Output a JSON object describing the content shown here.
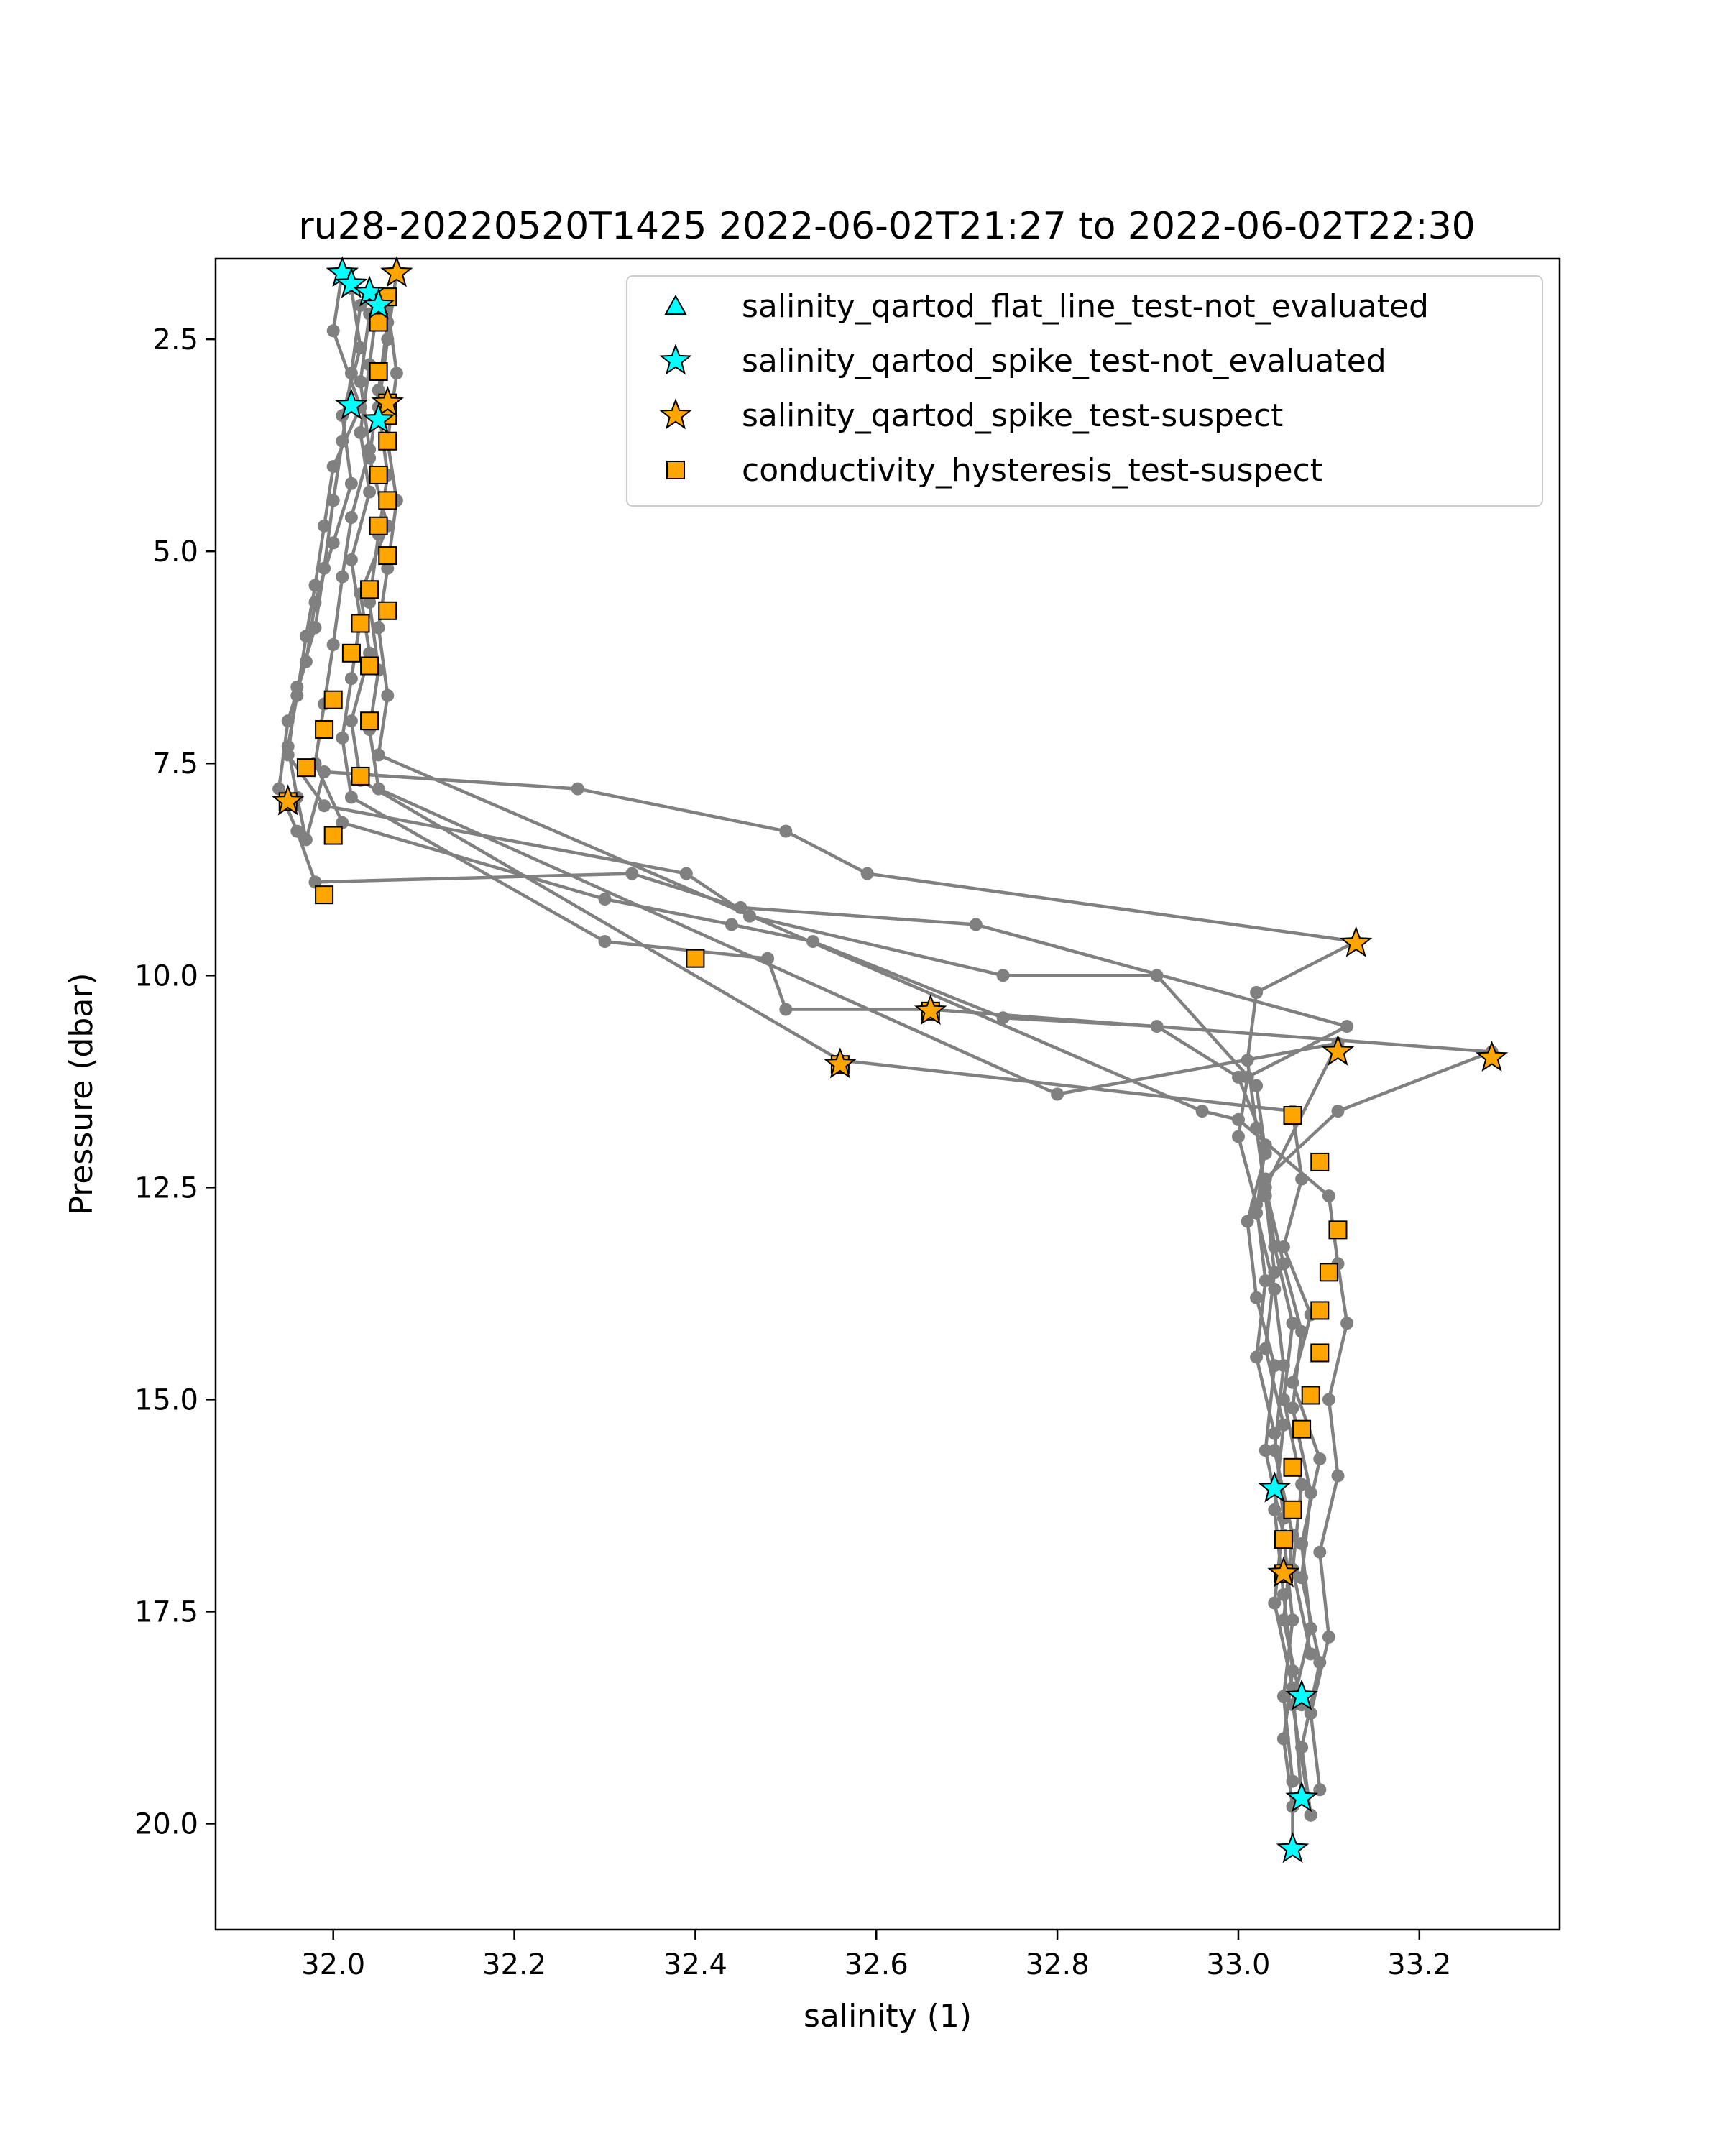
{
  "chart_data": {
    "type": "line",
    "title": "ru28-20220520T1425 2022-06-02T21:27 to 2022-06-02T22:30",
    "xlabel": "salinity (1)",
    "ylabel": "Pressure (dbar)",
    "xlim": [
      31.87,
      33.355
    ],
    "ylim": [
      21.25,
      1.55
    ],
    "y_inverted": true,
    "grid": false,
    "legend_position": "upper-right",
    "xticks": [
      32.0,
      32.2,
      32.4,
      32.6,
      32.8,
      33.0,
      33.2
    ],
    "xtick_labels": [
      "32.0",
      "32.2",
      "32.4",
      "32.6",
      "32.8",
      "33.0",
      "33.2"
    ],
    "yticks": [
      2.5,
      5.0,
      7.5,
      10.0,
      12.5,
      15.0,
      17.5,
      20.0
    ],
    "ytick_labels": [
      "2.5",
      "5.0",
      "7.5",
      "10.0",
      "12.5",
      "15.0",
      "17.5",
      "20.0"
    ],
    "colors": {
      "profile_line": "#808080",
      "not_evaluated": "#00ffff",
      "suspect": "#ffa500",
      "marker_edge": "#000000"
    },
    "profiles": [
      {
        "x": [
          32.01,
          32.0,
          32.03,
          32.0,
          31.99,
          31.98,
          31.97,
          31.96,
          31.95,
          31.96,
          31.97,
          31.99,
          32.27,
          32.5,
          32.59,
          33.13,
          33.02,
          33.01,
          33.02,
          33.03,
          33.04,
          33.03,
          33.05,
          33.04,
          33.05,
          33.06,
          33.05,
          33.06,
          33.06
        ],
        "y": [
          1.7,
          2.4,
          3.3,
          4.0,
          4.7,
          5.4,
          6.0,
          6.7,
          7.3,
          7.9,
          8.4,
          7.6,
          7.8,
          8.3,
          8.8,
          9.6,
          10.2,
          11.0,
          11.8,
          12.6,
          13.5,
          14.4,
          15.3,
          16.3,
          17.3,
          18.2,
          19.0,
          19.8,
          20.3
        ]
      },
      {
        "x": [
          32.02,
          32.03,
          32.01,
          32.02,
          32.0,
          31.98,
          31.97,
          31.95,
          31.94,
          31.96,
          31.98,
          32.33,
          32.45,
          32.71,
          33.12,
          33.01,
          33.0,
          33.02,
          33.03,
          33.02,
          33.04,
          33.05,
          33.04,
          33.06,
          33.07
        ],
        "y": [
          1.9,
          2.6,
          3.4,
          4.2,
          4.9,
          5.6,
          6.3,
          7.0,
          7.8,
          8.3,
          8.9,
          8.8,
          9.2,
          9.4,
          10.6,
          11.2,
          11.9,
          12.7,
          13.6,
          14.5,
          15.4,
          16.4,
          17.4,
          18.4,
          19.7
        ]
      },
      {
        "x": [
          32.03,
          32.02,
          32.01,
          32.0,
          31.99,
          31.98,
          31.96,
          31.95,
          31.99,
          32.39,
          32.46,
          32.74,
          32.91,
          33.02,
          33.03,
          33.01,
          33.02,
          33.04,
          33.03,
          33.05,
          33.06,
          33.05,
          33.06
        ],
        "y": [
          2.1,
          2.9,
          3.7,
          4.4,
          5.2,
          5.9,
          6.6,
          7.4,
          8.0,
          8.8,
          9.3,
          10.0,
          10.0,
          11.3,
          12.1,
          12.9,
          13.8,
          14.6,
          15.6,
          16.6,
          17.6,
          18.5,
          19.5
        ]
      },
      {
        "x": [
          32.04,
          32.03,
          32.04,
          32.02,
          32.01,
          32.0,
          31.99,
          31.98,
          32.01,
          32.3,
          32.44,
          32.53,
          32.74,
          32.91,
          33.0,
          33.03,
          33.02,
          33.04,
          33.05,
          33.04,
          33.06,
          33.05,
          33.07
        ],
        "y": [
          2.2,
          3.0,
          3.8,
          4.6,
          5.3,
          6.1,
          6.8,
          7.5,
          8.2,
          9.1,
          9.4,
          9.6,
          10.5,
          10.6,
          11.2,
          12.0,
          12.8,
          13.7,
          14.6,
          15.6,
          16.6,
          17.6,
          18.6
        ]
      },
      {
        "x": [
          32.05,
          32.04,
          32.03,
          32.04,
          32.02,
          32.03,
          32.02,
          32.01,
          32.02,
          32.3,
          32.48,
          32.5,
          32.66,
          33.28,
          33.11,
          33.03,
          33.04,
          33.06,
          33.05,
          33.07,
          33.06,
          33.08
        ],
        "y": [
          2.0,
          2.8,
          3.6,
          4.3,
          5.1,
          5.8,
          6.5,
          7.2,
          7.9,
          9.6,
          9.8,
          10.4,
          10.4,
          10.9,
          11.6,
          12.4,
          13.2,
          14.1,
          15.0,
          16.0,
          17.0,
          18.0
        ]
      },
      {
        "x": [
          32.06,
          32.05,
          32.04,
          32.06,
          32.03,
          32.04,
          32.02,
          32.03,
          32.56,
          33.06,
          33.07,
          33.05,
          33.08,
          33.06,
          33.09,
          33.07,
          33.08,
          33.06,
          33.08
        ],
        "y": [
          2.3,
          3.1,
          3.9,
          4.7,
          5.5,
          6.2,
          7.0,
          7.7,
          11.0,
          11.6,
          12.4,
          13.2,
          14.0,
          14.8,
          15.7,
          16.7,
          17.7,
          18.6,
          19.9
        ]
      },
      {
        "x": [
          32.07,
          32.06,
          32.05,
          32.06,
          32.05,
          32.04,
          32.05,
          32.04,
          32.05,
          32.8,
          33.11,
          33.03,
          33.05,
          33.07,
          33.06,
          33.08,
          33.07,
          33.09,
          33.07,
          33.08
        ],
        "y": [
          1.7,
          2.5,
          3.3,
          4.1,
          4.8,
          5.6,
          6.4,
          7.1,
          7.8,
          11.4,
          10.8,
          12.5,
          13.4,
          14.2,
          15.1,
          16.1,
          17.1,
          18.1,
          19.1,
          19.9
        ]
      },
      {
        "x": [
          32.06,
          32.07,
          32.06,
          32.07,
          32.06,
          32.05,
          32.06,
          32.05,
          32.96,
          33.0,
          33.1,
          33.11,
          33.12,
          33.1,
          33.11,
          33.09,
          33.1,
          33.08,
          33.09
        ],
        "y": [
          2.1,
          2.9,
          3.7,
          4.4,
          5.2,
          5.9,
          6.7,
          7.4,
          11.6,
          11.7,
          12.6,
          13.4,
          14.1,
          15.0,
          15.9,
          16.8,
          17.8,
          18.7,
          19.6
        ]
      }
    ],
    "series": [
      {
        "name": "salinity_qartod_flat_line_test-not_evaluated",
        "marker": "triangle",
        "color": "#00ffff",
        "points": []
      },
      {
        "name": "salinity_qartod_spike_test-not_evaluated",
        "marker": "star",
        "color": "#00ffff",
        "points": [
          {
            "x": 32.01,
            "y": 1.72
          },
          {
            "x": 32.02,
            "y": 1.85
          },
          {
            "x": 32.04,
            "y": 1.95
          },
          {
            "x": 32.05,
            "y": 2.1
          },
          {
            "x": 32.02,
            "y": 3.28
          },
          {
            "x": 32.05,
            "y": 3.45
          },
          {
            "x": 33.04,
            "y": 16.05
          },
          {
            "x": 33.07,
            "y": 18.5
          },
          {
            "x": 33.07,
            "y": 19.7
          },
          {
            "x": 33.06,
            "y": 20.3
          }
        ]
      },
      {
        "name": "salinity_qartod_spike_test-suspect",
        "marker": "star",
        "color": "#ffa500",
        "points": [
          {
            "x": 32.07,
            "y": 1.72
          },
          {
            "x": 32.06,
            "y": 3.25
          },
          {
            "x": 31.95,
            "y": 7.95
          },
          {
            "x": 32.66,
            "y": 10.42
          },
          {
            "x": 32.56,
            "y": 11.05
          },
          {
            "x": 33.13,
            "y": 9.62
          },
          {
            "x": 33.11,
            "y": 10.9
          },
          {
            "x": 33.28,
            "y": 10.97
          },
          {
            "x": 33.05,
            "y": 17.05
          }
        ]
      },
      {
        "name": "conductivity_hysteresis_test-suspect",
        "marker": "square",
        "color": "#ffa500",
        "points": [
          {
            "x": 32.06,
            "y": 2.0
          },
          {
            "x": 32.05,
            "y": 2.3
          },
          {
            "x": 32.05,
            "y": 2.88
          },
          {
            "x": 32.06,
            "y": 3.25
          },
          {
            "x": 32.06,
            "y": 3.4
          },
          {
            "x": 32.06,
            "y": 3.7
          },
          {
            "x": 32.05,
            "y": 4.1
          },
          {
            "x": 32.06,
            "y": 4.4
          },
          {
            "x": 32.05,
            "y": 4.7
          },
          {
            "x": 32.06,
            "y": 5.05
          },
          {
            "x": 32.04,
            "y": 5.45
          },
          {
            "x": 32.06,
            "y": 5.7
          },
          {
            "x": 32.03,
            "y": 5.85
          },
          {
            "x": 32.02,
            "y": 6.2
          },
          {
            "x": 32.04,
            "y": 6.35
          },
          {
            "x": 32.0,
            "y": 6.75
          },
          {
            "x": 32.04,
            "y": 7.0
          },
          {
            "x": 31.99,
            "y": 7.1
          },
          {
            "x": 31.97,
            "y": 7.55
          },
          {
            "x": 32.03,
            "y": 7.65
          },
          {
            "x": 31.95,
            "y": 7.95
          },
          {
            "x": 32.0,
            "y": 8.35
          },
          {
            "x": 31.99,
            "y": 9.05
          },
          {
            "x": 32.4,
            "y": 9.8
          },
          {
            "x": 32.66,
            "y": 10.42
          },
          {
            "x": 32.56,
            "y": 11.05
          },
          {
            "x": 33.06,
            "y": 11.65
          },
          {
            "x": 33.09,
            "y": 12.2
          },
          {
            "x": 33.11,
            "y": 13.0
          },
          {
            "x": 33.1,
            "y": 13.5
          },
          {
            "x": 33.09,
            "y": 13.95
          },
          {
            "x": 33.09,
            "y": 14.45
          },
          {
            "x": 33.08,
            "y": 14.95
          },
          {
            "x": 33.07,
            "y": 15.35
          },
          {
            "x": 33.06,
            "y": 15.8
          },
          {
            "x": 33.06,
            "y": 16.3
          },
          {
            "x": 33.05,
            "y": 16.65
          },
          {
            "x": 33.05,
            "y": 17.05
          }
        ]
      }
    ]
  }
}
